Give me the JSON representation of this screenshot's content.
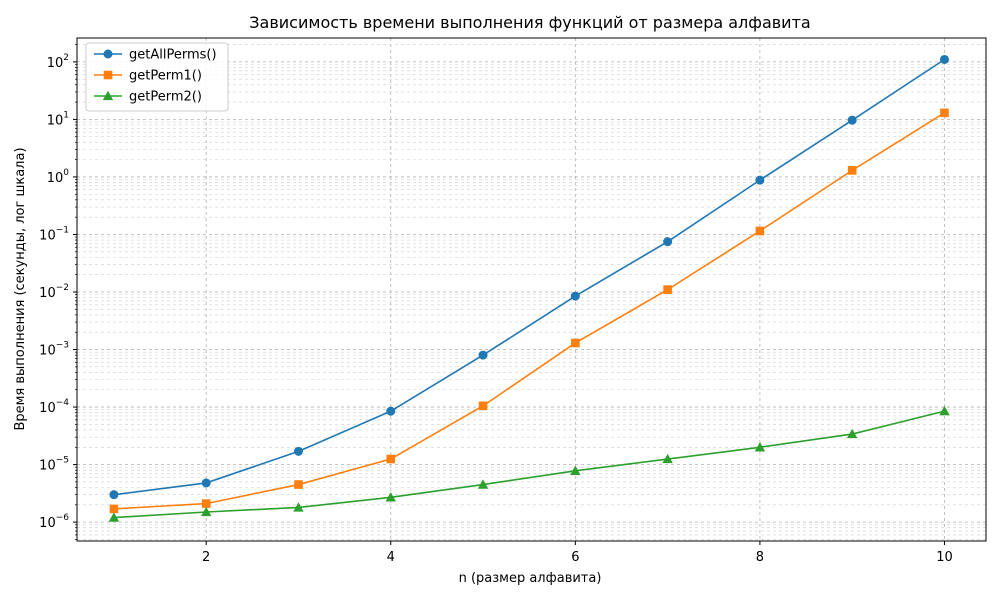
{
  "chart_data": {
    "type": "line",
    "title": "Зависимость времени выполнения функций от размера алфавита",
    "xlabel": "n (размер алфавита)",
    "ylabel": "Время выполнения (секунды, лог шкала)",
    "x": [
      1,
      2,
      3,
      4,
      5,
      6,
      7,
      8,
      9,
      10
    ],
    "xlim": [
      0.6,
      10.45
    ],
    "ylim": [
      4.7e-07,
      260
    ],
    "yscale": "log",
    "grid": "major+minor, dashed",
    "legend_position": "top-left",
    "x_ticks": [
      2,
      4,
      6,
      8,
      10
    ],
    "y_tick_exponents": [
      -6,
      -5,
      -4,
      -3,
      -2,
      -1,
      0,
      1,
      2
    ],
    "series": [
      {
        "name": "getAllPerms()",
        "color": "#1f77b4",
        "marker": "circle",
        "values": [
          3e-06,
          4.8e-06,
          1.7e-05,
          8.5e-05,
          0.0008,
          0.0085,
          0.075,
          0.88,
          9.7,
          110
        ]
      },
      {
        "name": "getPerm1()",
        "color": "#ff7f0e",
        "marker": "square",
        "values": [
          1.7e-06,
          2.1e-06,
          4.5e-06,
          1.25e-05,
          0.000105,
          0.0013,
          0.011,
          0.115,
          1.3,
          13
        ]
      },
      {
        "name": "getPerm2()",
        "color": "#2ca02c",
        "marker": "triangle",
        "values": [
          1.2e-06,
          1.5e-06,
          1.8e-06,
          2.7e-06,
          4.5e-06,
          7.8e-06,
          1.25e-05,
          2e-05,
          3.4e-05,
          8.5e-05
        ]
      }
    ]
  }
}
